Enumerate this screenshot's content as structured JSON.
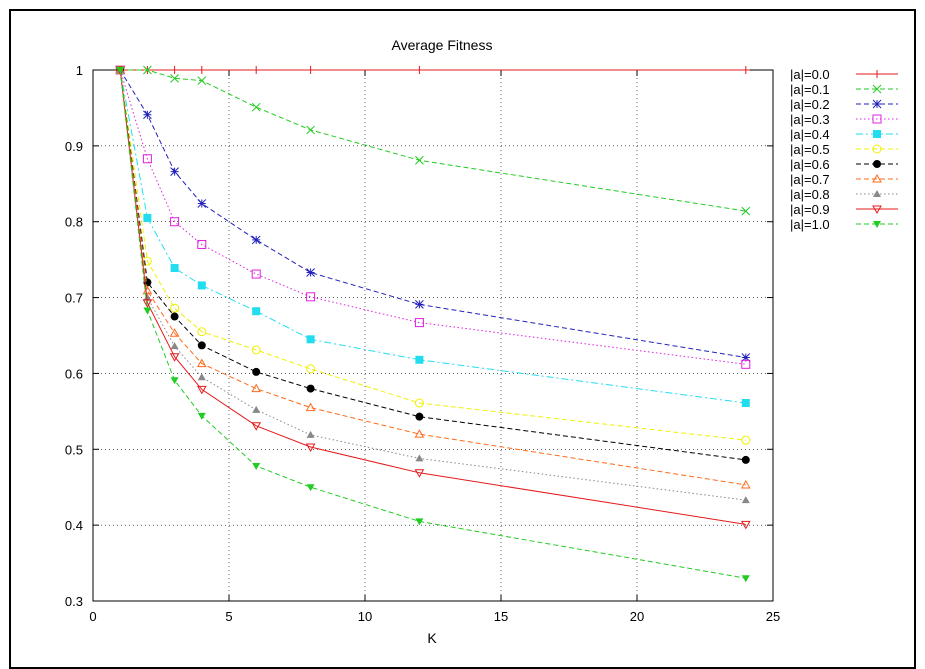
{
  "chart_data": {
    "type": "line",
    "title": "Average Fitness",
    "xlabel": "K",
    "ylabel": "",
    "xlim": [
      0,
      25
    ],
    "ylim": [
      0.3,
      1.0
    ],
    "xticks": [
      "0",
      "5",
      "10",
      "15",
      "20",
      "25"
    ],
    "yticks": [
      "0.3",
      "0.4",
      "0.5",
      "0.6",
      "0.7",
      "0.8",
      "0.9",
      "1"
    ],
    "grid": true,
    "legend_position": "outside-right",
    "x": [
      1,
      2,
      3,
      4,
      6,
      8,
      12,
      24
    ],
    "series": [
      {
        "name": "|a|=0.0",
        "color": "#e41a1c",
        "dash": "solid",
        "marker": "plus",
        "values": [
          1.0,
          1.0,
          1.0,
          1.0,
          1.0,
          1.0,
          1.0,
          1.0
        ]
      },
      {
        "name": "|a|=0.1",
        "color": "#22cc22",
        "dash": "dashed",
        "marker": "x",
        "values": [
          1.0,
          1.0,
          0.989,
          0.986,
          0.951,
          0.921,
          0.881,
          0.814
        ]
      },
      {
        "name": "|a|=0.2",
        "color": "#2222bb",
        "dash": "dashed",
        "marker": "star",
        "values": [
          1.0,
          0.941,
          0.866,
          0.824,
          0.776,
          0.733,
          0.691,
          0.621
        ]
      },
      {
        "name": "|a|=0.3",
        "color": "#e020e0",
        "dash": "dotted",
        "marker": "open-square",
        "values": [
          1.0,
          0.883,
          0.8,
          0.77,
          0.731,
          0.701,
          0.667,
          0.612
        ]
      },
      {
        "name": "|a|=0.4",
        "color": "#22ddee",
        "dash": "dashdot",
        "marker": "filled-square",
        "values": [
          1.0,
          0.805,
          0.739,
          0.716,
          0.682,
          0.645,
          0.618,
          0.561
        ]
      },
      {
        "name": "|a|=0.5",
        "color": "#f0f000",
        "dash": "dashed",
        "marker": "open-circle",
        "values": [
          1.0,
          0.748,
          0.686,
          0.655,
          0.631,
          0.606,
          0.561,
          0.512
        ]
      },
      {
        "name": "|a|=0.6",
        "color": "#000000",
        "dash": "dashed",
        "marker": "filled-circle",
        "values": [
          1.0,
          0.72,
          0.675,
          0.637,
          0.602,
          0.58,
          0.543,
          0.486
        ]
      },
      {
        "name": "|a|=0.7",
        "color": "#ff6a1a",
        "dash": "dashed",
        "marker": "open-triangle",
        "values": [
          1.0,
          0.709,
          0.653,
          0.613,
          0.58,
          0.555,
          0.52,
          0.453
        ]
      },
      {
        "name": "|a|=0.8",
        "color": "#888888",
        "dash": "dotted",
        "marker": "filled-triangle",
        "values": [
          1.0,
          0.7,
          0.636,
          0.595,
          0.552,
          0.519,
          0.488,
          0.433
        ]
      },
      {
        "name": "|a|=0.9",
        "color": "#e41a1c",
        "dash": "solid",
        "marker": "open-down-triangle",
        "values": [
          1.0,
          0.693,
          0.622,
          0.579,
          0.531,
          0.503,
          0.469,
          0.401
        ]
      },
      {
        "name": "|a|=1.0",
        "color": "#22cc22",
        "dash": "dashed",
        "marker": "filled-down-triangle",
        "values": [
          1.0,
          0.683,
          0.591,
          0.544,
          0.478,
          0.45,
          0.405,
          0.33
        ]
      }
    ]
  }
}
